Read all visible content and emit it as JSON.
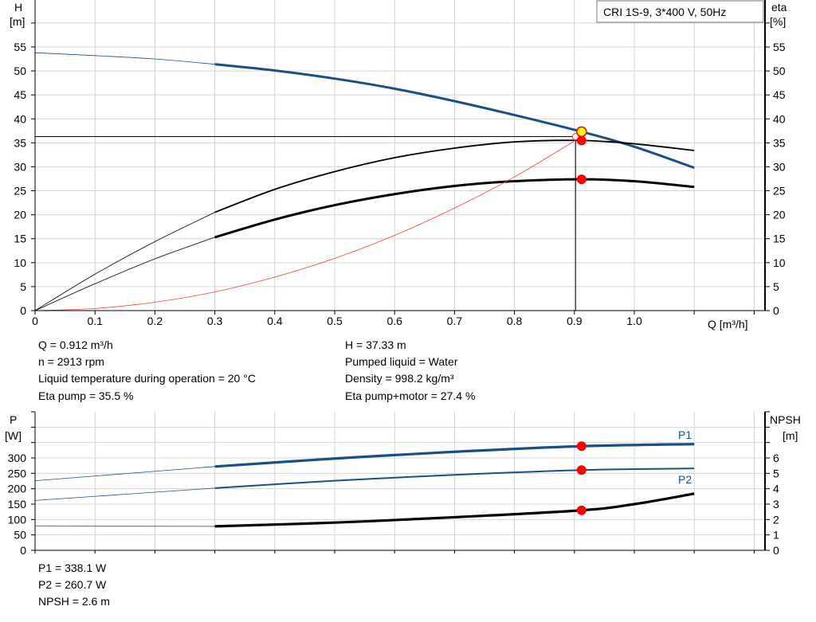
{
  "chart_data": [
    {
      "type": "line",
      "title": "CRI 1S-9, 3*400 V, 50Hz",
      "xlabel": "Q [m³/h]",
      "ylabel_left": [
        "H",
        "[m]"
      ],
      "ylabel_right": [
        "eta",
        "[%]"
      ],
      "xlim": [
        0,
        1.22
      ],
      "ylim": [
        0,
        64.8
      ],
      "x_ticks": [
        "0",
        "0.1",
        "0.2",
        "0.3",
        "0.4",
        "0.5",
        "0.6",
        "0.7",
        "0.8",
        "0.9",
        "1.0"
      ],
      "y_ticks": [
        "0",
        "5",
        "10",
        "15",
        "20",
        "25",
        "30",
        "35",
        "40",
        "45",
        "50",
        "55"
      ],
      "grid": true,
      "series": [
        {
          "id": "H",
          "color": "#1a4f86",
          "points": [
            [
              0,
              53.8
            ],
            [
              0.1,
              53.2
            ],
            [
              0.2,
              52.5
            ],
            [
              0.3,
              51.4
            ],
            [
              0.4,
              50.1
            ],
            [
              0.5,
              48.4
            ],
            [
              0.6,
              46.3
            ],
            [
              0.7,
              43.7
            ],
            [
              0.8,
              40.8
            ],
            [
              0.912,
              37.33
            ],
            [
              1.0,
              34.2
            ],
            [
              1.1,
              29.8
            ]
          ],
          "thick_from": 0.3
        },
        {
          "id": "eta_pump",
          "color": "#000000",
          "points": [
            [
              0,
              0
            ],
            [
              0.1,
              7.6
            ],
            [
              0.2,
              14.4
            ],
            [
              0.3,
              20.5
            ],
            [
              0.4,
              25.3
            ],
            [
              0.5,
              29.0
            ],
            [
              0.6,
              31.9
            ],
            [
              0.7,
              33.9
            ],
            [
              0.8,
              35.2
            ],
            [
              0.912,
              35.5
            ],
            [
              1.0,
              34.8
            ],
            [
              1.1,
              33.4
            ]
          ],
          "thick_from": 0.3,
          "width": 1.8
        },
        {
          "id": "eta_pump_motor",
          "color": "#000000",
          "points": [
            [
              0,
              0
            ],
            [
              0.1,
              5.6
            ],
            [
              0.2,
              10.8
            ],
            [
              0.3,
              15.3
            ],
            [
              0.4,
              19.0
            ],
            [
              0.5,
              22.0
            ],
            [
              0.6,
              24.3
            ],
            [
              0.7,
              26.0
            ],
            [
              0.8,
              27.0
            ],
            [
              0.912,
              27.4
            ],
            [
              1.0,
              27.0
            ],
            [
              1.1,
              25.8
            ]
          ],
          "thick_from": 0.3,
          "width": 3
        },
        {
          "id": "system",
          "color": "#ff3b3b",
          "points": [
            [
              0,
              0
            ],
            [
              0.1,
              0.44
            ],
            [
              0.2,
              1.75
            ],
            [
              0.3,
              3.9
            ],
            [
              0.4,
              7.0
            ],
            [
              0.5,
              10.9
            ],
            [
              0.6,
              15.7
            ],
            [
              0.7,
              21.4
            ],
            [
              0.8,
              27.9
            ],
            [
              0.9,
              35.4
            ],
            [
              0.905,
              36.0
            ]
          ],
          "width": 0.8
        }
      ],
      "operating_point": {
        "q": 0.912,
        "h": 37.33,
        "eta_pump": 35.5,
        "eta_pump_motor": 27.4
      },
      "reference_lines": {
        "q": 0.902,
        "h": 36.3
      }
    },
    {
      "type": "line",
      "xlim": [
        0,
        1.22
      ],
      "ylabel_left": [
        "P",
        "[W]"
      ],
      "ylabel_right": [
        "NPSH",
        "[m]"
      ],
      "ylim_left": [
        0,
        450
      ],
      "ylim_right": [
        0,
        9
      ],
      "y_ticks_left": [
        "0",
        "50",
        "100",
        "150",
        "200",
        "250",
        "300"
      ],
      "y_ticks_right": [
        "0",
        "1",
        "2",
        "3",
        "4",
        "5",
        "6"
      ],
      "grid": true,
      "series": [
        {
          "name": "P1",
          "axis": "left",
          "color": "#1a4f86",
          "points": [
            [
              0,
              226
            ],
            [
              0.3,
              272
            ],
            [
              0.5,
              298
            ],
            [
              0.7,
              320
            ],
            [
              0.912,
              338.1
            ],
            [
              1.1,
              345
            ]
          ],
          "thick_from": 0.3,
          "width": 3.2
        },
        {
          "name": "P2",
          "axis": "left",
          "color": "#1a4f86",
          "points": [
            [
              0,
              162
            ],
            [
              0.3,
              202
            ],
            [
              0.5,
              226
            ],
            [
              0.7,
              245
            ],
            [
              0.912,
              260.7
            ],
            [
              1.1,
              266
            ]
          ],
          "thick_from": 0.3,
          "width": 2
        },
        {
          "id": "NPSH",
          "axis": "right",
          "color": "#000000",
          "points": [
            [
              0,
              1.58
            ],
            [
              0.3,
              1.56
            ],
            [
              0.5,
              1.8
            ],
            [
              0.7,
              2.15
            ],
            [
              0.912,
              2.6
            ],
            [
              1.0,
              3.0
            ],
            [
              1.1,
              3.68
            ]
          ],
          "thick_from": 0.3,
          "width": 3.2
        }
      ],
      "operating_point": {
        "q": 0.912,
        "p1": 338.1,
        "p2": 260.7,
        "npsh": 2.6
      }
    }
  ],
  "info_top": {
    "q": "Q = 0.912 m³/h",
    "n": "n = 2913 rpm",
    "temp": "Liquid temperature during operation = 20 °C",
    "eta_pump": "Eta pump = 35.5 %",
    "h": "H = 37.33 m",
    "liquid": "Pumped liquid = Water",
    "density": "Density = 998.2 kg/m³",
    "eta_pm": "Eta pump+motor = 27.4 %"
  },
  "info_bottom": {
    "p1": "P1 = 338.1 W",
    "p2": "P2 = 260.7 W",
    "npsh": "NPSH = 2.6 m"
  }
}
